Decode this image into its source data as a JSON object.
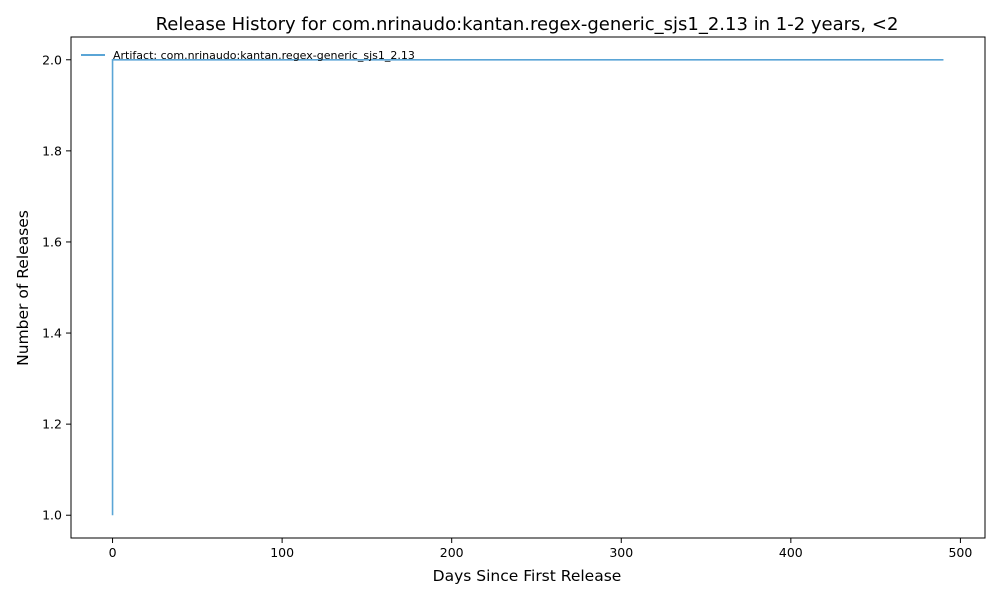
{
  "chart_data": {
    "type": "line",
    "title": "Release History for com.nrinaudo:kantan.regex-generic_sjs1_2.13 in 1-2 years, <2",
    "xlabel": "Days Since First Release",
    "ylabel": "Number of Releases",
    "xlim": [
      -24.5,
      514.5
    ],
    "ylim": [
      0.95,
      2.05
    ],
    "xticks": [
      0,
      100,
      200,
      300,
      400,
      500
    ],
    "yticks": [
      1.0,
      1.2,
      1.4,
      1.6,
      1.8,
      2.0
    ],
    "xtick_labels": [
      "0",
      "100",
      "200",
      "300",
      "400",
      "500"
    ],
    "ytick_labels": [
      "1.0",
      "1.2",
      "1.4",
      "1.6",
      "1.8",
      "2.0"
    ],
    "grid": false,
    "legend_position": "top-left",
    "series": [
      {
        "name": "Artifact: com.nrinaudo:kantan.regex-generic_sjs1_2.13",
        "color": "#5aa5d6",
        "x": [
          0,
          0,
          490
        ],
        "y": [
          1,
          2,
          2
        ]
      }
    ]
  }
}
